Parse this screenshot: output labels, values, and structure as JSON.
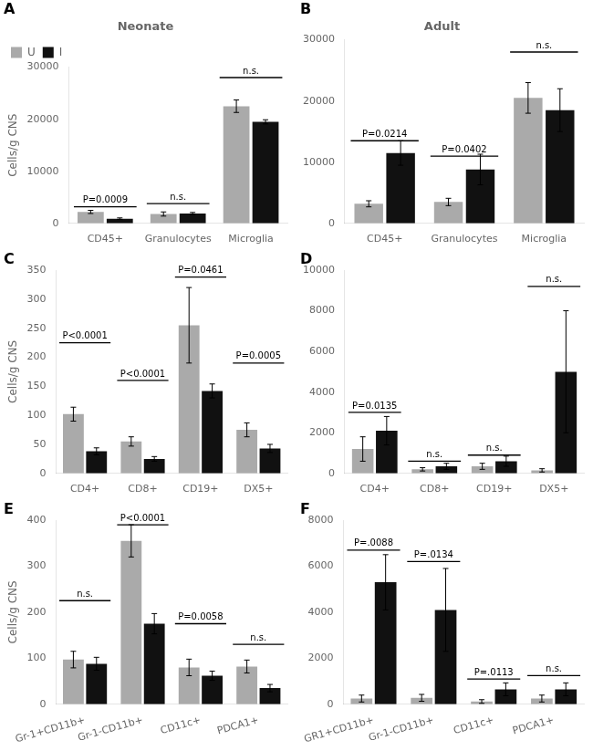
{
  "chart_data": [
    {
      "type": "bar",
      "panel": "A",
      "title": "Neonate",
      "y_label": "Cells/g CNS",
      "categories": [
        "CD45+",
        "Granulocytes",
        "Microglia"
      ],
      "series": [
        {
          "name": "U",
          "color": "#aaaaaa",
          "values": [
            2200,
            1800,
            22500
          ],
          "errors": [
            300,
            400,
            1200
          ]
        },
        {
          "name": "I",
          "color": "#111111",
          "values": [
            900,
            1900,
            19500
          ],
          "errors": [
            150,
            200,
            400
          ]
        }
      ],
      "ylim": [
        0,
        30000
      ],
      "yticks": [
        0,
        10000,
        20000,
        30000
      ],
      "grid": false,
      "legend": "upper left",
      "annotations": [
        {
          "text": "P=0.0009",
          "x": "CD45+",
          "y": 3200
        },
        {
          "text": "n.s.",
          "x": "Granulocytes",
          "y": 3800
        },
        {
          "text": "n.s.",
          "x": "Microglia",
          "y": 28000
        }
      ]
    },
    {
      "type": "bar",
      "panel": "B",
      "title": "Adult",
      "categories": [
        "CD45+",
        "Granulocytes",
        "Microglia"
      ],
      "series": [
        {
          "name": "U",
          "color": "#aaaaaa",
          "values": [
            3200,
            3500,
            20500
          ],
          "errors": [
            500,
            600,
            2500
          ]
        },
        {
          "name": "I",
          "color": "#111111",
          "values": [
            11500,
            8800,
            18500
          ],
          "errors": [
            2000,
            2500,
            3500
          ]
        }
      ],
      "ylim": [
        0,
        30000
      ],
      "yticks": [
        0,
        10000,
        20000,
        30000
      ],
      "grid": false,
      "annotations": [
        {
          "text": "P=0.0214",
          "x": "CD45+",
          "y": 13500
        },
        {
          "text": "P=0.0402",
          "x": "Granulocytes",
          "y": 11000
        },
        {
          "text": "n.s.",
          "x": "Microglia",
          "y": 28000
        }
      ]
    },
    {
      "type": "bar",
      "panel": "C",
      "y_label": "Cells/g CNS",
      "categories": [
        "CD4+",
        "CD8+",
        "CD19+",
        "DX5+"
      ],
      "series": [
        {
          "name": "U",
          "color": "#aaaaaa",
          "values": [
            102,
            55,
            255,
            75
          ],
          "errors": [
            12,
            8,
            65,
            12
          ]
        },
        {
          "name": "I",
          "color": "#111111",
          "values": [
            38,
            25,
            142,
            43
          ],
          "errors": [
            6,
            4,
            12,
            7
          ]
        }
      ],
      "ylim": [
        0,
        350
      ],
      "yticks": [
        0,
        50,
        100,
        150,
        200,
        250,
        300,
        350
      ],
      "grid": false,
      "annotations": [
        {
          "text": "P<0.0001",
          "x": "CD4+",
          "y": 225
        },
        {
          "text": "P<0.0001",
          "x": "CD8+",
          "y": 160
        },
        {
          "text": "P=0.0461",
          "x": "CD19+",
          "y": 338
        },
        {
          "text": "P=0.0005",
          "x": "DX5+",
          "y": 190
        }
      ]
    },
    {
      "type": "bar",
      "panel": "D",
      "categories": [
        "CD4+",
        "CD8+",
        "CD19+",
        "DX5+"
      ],
      "series": [
        {
          "name": "U",
          "color": "#aaaaaa",
          "values": [
            1200,
            200,
            350,
            150
          ],
          "errors": [
            600,
            80,
            150,
            80
          ]
        },
        {
          "name": "I",
          "color": "#111111",
          "values": [
            2100,
            350,
            600,
            5000
          ],
          "errors": [
            700,
            150,
            250,
            3000
          ]
        }
      ],
      "ylim": [
        0,
        10000
      ],
      "yticks": [
        0,
        2000,
        4000,
        6000,
        8000,
        10000
      ],
      "grid": false,
      "annotations": [
        {
          "text": "P=0.0135",
          "x": "CD4+",
          "y": 3000
        },
        {
          "text": "n.s.",
          "x": "CD8+",
          "y": 600
        },
        {
          "text": "n.s.",
          "x": "CD19+",
          "y": 900
        },
        {
          "text": "n.s.",
          "x": "DX5+",
          "y": 9200
        }
      ]
    },
    {
      "type": "bar",
      "panel": "E",
      "y_label": "Cells/g CNS",
      "categories": [
        "Gr-1+CD11b+",
        "Gr-1-CD11b+",
        "CD11c+",
        "PDCA1+"
      ],
      "series": [
        {
          "name": "U",
          "color": "#aaaaaa",
          "values": [
            97,
            355,
            80,
            82
          ],
          "errors": [
            18,
            35,
            18,
            14
          ]
        },
        {
          "name": "I",
          "color": "#111111",
          "values": [
            88,
            175,
            62,
            35
          ],
          "errors": [
            14,
            22,
            10,
            8
          ]
        }
      ],
      "ylim": [
        0,
        400
      ],
      "yticks": [
        0,
        100,
        200,
        300,
        400
      ],
      "grid": false,
      "annotations": [
        {
          "text": "n.s.",
          "x": "Gr-1+CD11b+",
          "y": 225
        },
        {
          "text": "P<0.0001",
          "x": "Gr-1-CD11b+",
          "y": 390
        },
        {
          "text": "P=0.0058",
          "x": "CD11c+",
          "y": 175
        },
        {
          "text": "n.s.",
          "x": "PDCA1+",
          "y": 130
        }
      ]
    },
    {
      "type": "bar",
      "panel": "F",
      "categories": [
        "GR1+CD11b+",
        "Gr-1-CD11b+",
        "CD11c+",
        "PDCA1+"
      ],
      "series": [
        {
          "name": "U",
          "color": "#aaaaaa",
          "values": [
            250,
            280,
            120,
            250
          ],
          "errors": [
            150,
            150,
            80,
            150
          ]
        },
        {
          "name": "I",
          "color": "#111111",
          "values": [
            5300,
            4100,
            650,
            650
          ],
          "errors": [
            1200,
            1800,
            280,
            280
          ]
        }
      ],
      "ylim": [
        0,
        8000
      ],
      "yticks": [
        0,
        2000,
        4000,
        6000,
        8000
      ],
      "grid": false,
      "annotations": [
        {
          "text": "P=.0088",
          "x": "GR1+CD11b+",
          "y": 6700
        },
        {
          "text": "P=.0134",
          "x": "Gr-1-CD11b+",
          "y": 6200
        },
        {
          "text": "P=.0113",
          "x": "CD11c+",
          "y": 1100
        },
        {
          "text": "n.s.",
          "x": "PDCA1+",
          "y": 1250
        }
      ]
    }
  ]
}
